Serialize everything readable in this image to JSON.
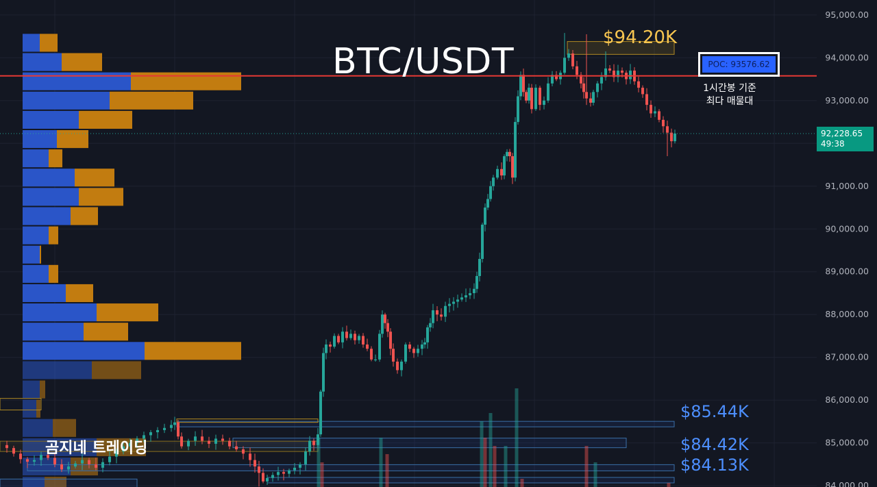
{
  "colors": {
    "background": "#131722",
    "grid": "#1e2230",
    "axis_text": "#b2b5be",
    "up": "#26a69a",
    "down": "#ef5350",
    "vp_buy": "#2a55c8",
    "vp_sell": "#c27c10",
    "poc_line": "#e53935",
    "poc_box": "#2962ff",
    "level_text": "#4d8fff",
    "high_text": "#f7c550",
    "price_tag": "#089981"
  },
  "texts": {
    "title": "BTC/USDT",
    "high_label": "$94.20K",
    "poc_label": "POC: 93576.62",
    "poc_note_line1": "1시간봉 기준",
    "poc_note_line2": "최다 매물대",
    "level_1": "$85.44K",
    "level_2": "$84.42K",
    "level_3": "$84.13K",
    "brand": "곰지네 트레이딩",
    "current_price": "92,228.65",
    "countdown": "49:38"
  },
  "chart_data": {
    "type": "candlestick",
    "title": "BTC/USDT",
    "y_axis_ticks": [
      "95,000.00",
      "94,000.00",
      "93,000.00",
      "92,000.00",
      "91,000.00",
      "90,000.00",
      "89,000.00",
      "88,000.00",
      "87,000.00",
      "86,000.00",
      "85,000.00",
      "84,000.00"
    ],
    "ylim": [
      83970,
      95350
    ],
    "y_tick_values": [
      95000,
      94000,
      93000,
      92000,
      91000,
      90000,
      89000,
      88000,
      87000,
      86000,
      85000,
      84000
    ],
    "poc": 93576.62,
    "current_price": 92228.65,
    "levels": [
      {
        "label": "$85.44K",
        "value": 85440
      },
      {
        "label": "$84.42K",
        "value": 84420
      },
      {
        "label": "$84.13K",
        "value": 84130
      }
    ],
    "high_zone": [
      94080,
      94380
    ],
    "close_path": [
      [
        0,
        84950
      ],
      [
        10,
        84880
      ],
      [
        20,
        84750
      ],
      [
        30,
        84620
      ],
      [
        40,
        84560
      ],
      [
        50,
        84600
      ],
      [
        60,
        84720
      ],
      [
        70,
        84650
      ],
      [
        80,
        84500
      ],
      [
        90,
        84380
      ],
      [
        100,
        84450
      ],
      [
        110,
        84520
      ],
      [
        120,
        84600
      ],
      [
        130,
        84500
      ],
      [
        140,
        84420
      ],
      [
        150,
        84550
      ],
      [
        160,
        84680
      ],
      [
        170,
        84800
      ],
      [
        180,
        84920
      ],
      [
        190,
        85000
      ],
      [
        200,
        85100
      ],
      [
        210,
        85180
      ],
      [
        220,
        85250
      ],
      [
        230,
        85300
      ],
      [
        240,
        85350
      ],
      [
        250,
        85420
      ],
      [
        255,
        85480
      ],
      [
        260,
        85150
      ],
      [
        265,
        84920
      ],
      [
        275,
        85050
      ],
      [
        285,
        85150
      ],
      [
        295,
        85050
      ],
      [
        305,
        84980
      ],
      [
        315,
        85100
      ],
      [
        325,
        85050
      ],
      [
        335,
        84920
      ],
      [
        345,
        84850
      ],
      [
        355,
        84750
      ],
      [
        365,
        84600
      ],
      [
        372,
        84450
      ],
      [
        378,
        84300
      ],
      [
        384,
        84100
      ],
      [
        390,
        84180
      ],
      [
        398,
        84250
      ],
      [
        406,
        84320
      ],
      [
        414,
        84280
      ],
      [
        422,
        84360
      ],
      [
        430,
        84420
      ],
      [
        438,
        84500
      ],
      [
        446,
        84800
      ],
      [
        452,
        85050
      ],
      [
        458,
        84950
      ],
      [
        464,
        85200
      ],
      [
        468,
        86200
      ],
      [
        472,
        87100
      ],
      [
        476,
        87300
      ],
      [
        482,
        87250
      ],
      [
        488,
        87500
      ],
      [
        494,
        87350
      ],
      [
        500,
        87600
      ],
      [
        506,
        87450
      ],
      [
        512,
        87550
      ],
      [
        518,
        87400
      ],
      [
        524,
        87500
      ],
      [
        530,
        87300
      ],
      [
        536,
        87200
      ],
      [
        542,
        86950
      ],
      [
        548,
        86950
      ],
      [
        554,
        87550
      ],
      [
        558,
        88000
      ],
      [
        562,
        87800
      ],
      [
        566,
        87600
      ],
      [
        570,
        87200
      ],
      [
        574,
        86900
      ],
      [
        580,
        86700
      ],
      [
        586,
        86900
      ],
      [
        592,
        87300
      ],
      [
        598,
        87200
      ],
      [
        604,
        87100
      ],
      [
        610,
        87200
      ],
      [
        616,
        87300
      ],
      [
        620,
        87350
      ],
      [
        624,
        87700
      ],
      [
        628,
        87800
      ],
      [
        632,
        88100
      ],
      [
        638,
        88000
      ],
      [
        644,
        87950
      ],
      [
        650,
        88200
      ],
      [
        656,
        88250
      ],
      [
        662,
        88300
      ],
      [
        668,
        88350
      ],
      [
        674,
        88400
      ],
      [
        680,
        88450
      ],
      [
        686,
        88500
      ],
      [
        692,
        88600
      ],
      [
        696,
        88900
      ],
      [
        700,
        89300
      ],
      [
        704,
        90100
      ],
      [
        708,
        90500
      ],
      [
        712,
        90700
      ],
      [
        716,
        91000
      ],
      [
        720,
        91200
      ],
      [
        726,
        91400
      ],
      [
        732,
        91250
      ],
      [
        736,
        91700
      ],
      [
        740,
        91800
      ],
      [
        744,
        91700
      ],
      [
        748,
        91200
      ],
      [
        752,
        92500
      ],
      [
        756,
        93100
      ],
      [
        760,
        93600
      ],
      [
        764,
        93200
      ],
      [
        768,
        93000
      ],
      [
        772,
        93300
      ],
      [
        776,
        92800
      ],
      [
        782,
        93300
      ],
      [
        788,
        92900
      ],
      [
        794,
        93000
      ],
      [
        800,
        93400
      ],
      [
        806,
        93600
      ],
      [
        812,
        93500
      ],
      [
        818,
        93650
      ],
      [
        824,
        94000
      ],
      [
        830,
        94100
      ],
      [
        836,
        93800
      ],
      [
        842,
        93600
      ],
      [
        848,
        93400
      ],
      [
        852,
        93200
      ],
      [
        856,
        93050
      ],
      [
        862,
        92950
      ],
      [
        866,
        93200
      ],
      [
        872,
        93400
      ],
      [
        878,
        93550
      ],
      [
        884,
        93750
      ],
      [
        890,
        93700
      ],
      [
        896,
        93550
      ],
      [
        902,
        93700
      ],
      [
        908,
        93650
      ],
      [
        914,
        93500
      ],
      [
        920,
        93700
      ],
      [
        926,
        93450
      ],
      [
        932,
        93300
      ],
      [
        938,
        93150
      ],
      [
        944,
        92900
      ],
      [
        950,
        92700
      ],
      [
        956,
        92750
      ],
      [
        962,
        92550
      ],
      [
        968,
        92400
      ],
      [
        974,
        92250
      ],
      [
        980,
        92050
      ],
      [
        985,
        92228.65
      ]
    ],
    "wick_spikes": [
      {
        "x": 856,
        "high": 94550
      },
      {
        "x": 868,
        "low": 91850
      },
      {
        "x": 824,
        "high": 94580
      },
      {
        "x": 884,
        "high": 94150
      },
      {
        "x": 974,
        "low": 91700
      },
      {
        "x": 378,
        "low": 83980
      }
    ],
    "volume_profile": [
      {
        "price": 94350,
        "buy": 25,
        "sell": 26
      },
      {
        "price": 93900,
        "buy": 57,
        "sell": 59
      },
      {
        "price": 93450,
        "buy": 158,
        "sell": 161
      },
      {
        "price": 93000,
        "buy": 127,
        "sell": 122
      },
      {
        "price": 92550,
        "buy": 82,
        "sell": 78
      },
      {
        "price": 92100,
        "buy": 50,
        "sell": 46
      },
      {
        "price": 91650,
        "buy": 38,
        "sell": 20
      },
      {
        "price": 91200,
        "buy": 76,
        "sell": 58
      },
      {
        "price": 90750,
        "buy": 82,
        "sell": 65
      },
      {
        "price": 90300,
        "buy": 70,
        "sell": 40
      },
      {
        "price": 89850,
        "buy": 38,
        "sell": 14
      },
      {
        "price": 89400,
        "buy": 25,
        "sell": 2
      },
      {
        "price": 88950,
        "buy": 38,
        "sell": 14
      },
      {
        "price": 88500,
        "buy": 63,
        "sell": 40
      },
      {
        "price": 88050,
        "buy": 108,
        "sell": 90
      },
      {
        "price": 87600,
        "buy": 89,
        "sell": 65
      },
      {
        "price": 87150,
        "buy": 178,
        "sell": 141
      },
      {
        "price": 86700,
        "buy": 101,
        "sell": 72
      },
      {
        "price": 86250,
        "buy": 25,
        "sell": 8
      },
      {
        "price": 85800,
        "buy": 20,
        "sell": 6
      },
      {
        "price": 85350,
        "buy": 44,
        "sell": 34
      },
      {
        "price": 84900,
        "buy": 108,
        "sell": 72
      },
      {
        "price": 84450,
        "buy": 70,
        "sell": 40
      },
      {
        "price": 84000,
        "buy": 32,
        "sell": 32
      }
    ],
    "volume_bars": [
      {
        "x": 465,
        "v": 0.24
      },
      {
        "x": 470,
        "v": 0.12
      },
      {
        "x": 556,
        "v": 0.24
      },
      {
        "x": 565,
        "v": 0.16
      },
      {
        "x": 703,
        "v": 0.32
      },
      {
        "x": 708,
        "v": 0.24
      },
      {
        "x": 716,
        "v": 0.36
      },
      {
        "x": 722,
        "v": 0.2
      },
      {
        "x": 738,
        "v": 0.2
      },
      {
        "x": 754,
        "v": 0.48
      },
      {
        "x": 762,
        "v": 0.04
      },
      {
        "x": 856,
        "v": 0.2
      },
      {
        "x": 869,
        "v": 0.12
      },
      {
        "x": 976,
        "v": 0.02
      }
    ]
  }
}
